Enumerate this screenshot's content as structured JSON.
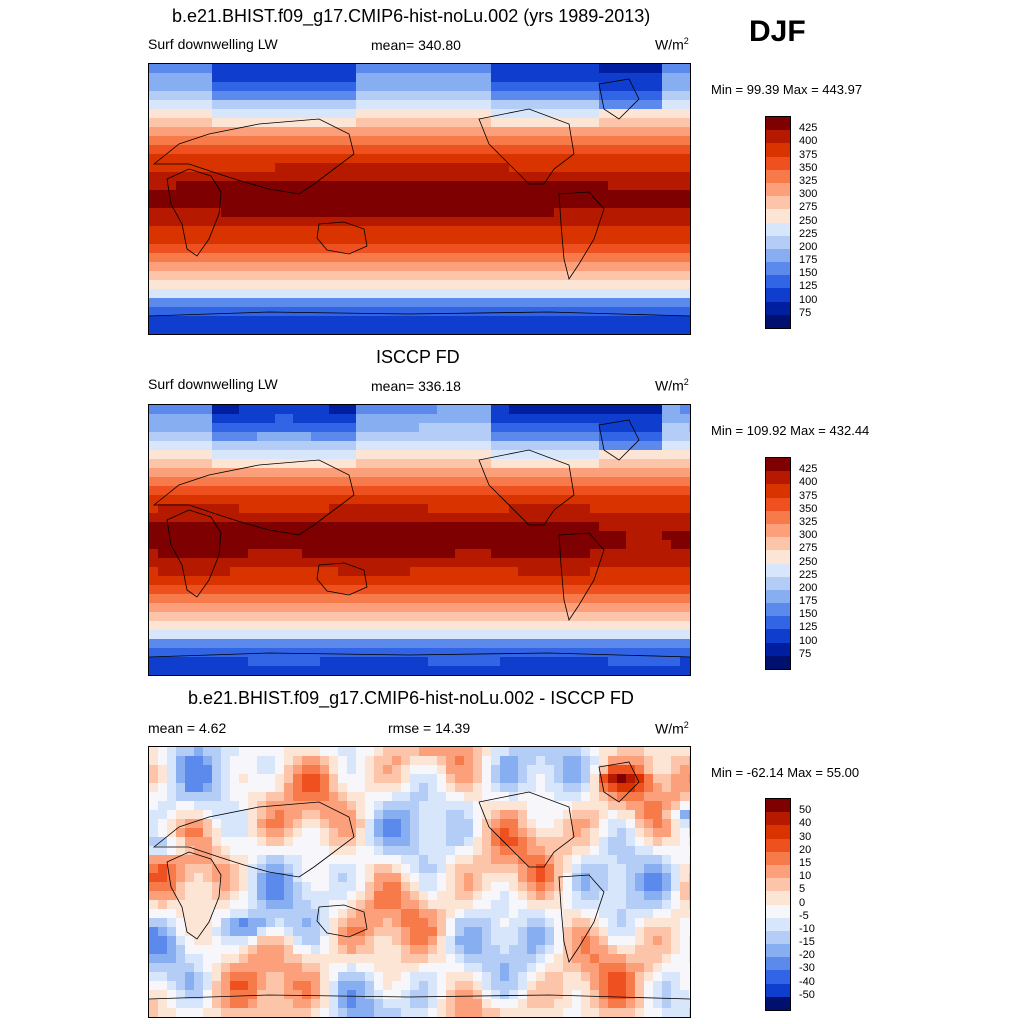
{
  "season": "DJF",
  "panels": [
    {
      "title": "b.e21.BHIST.f09_g17.CMIP6-hist-noLu.002 (yrs 1989-2013)",
      "left": "Surf downwelling LW",
      "mid": "mean= 340.80",
      "units": "W/m",
      "units_sup": "2",
      "minmax": "Min =  99.39 Max = 443.97"
    },
    {
      "title": "ISCCP FD",
      "left": "Surf downwelling LW",
      "mid": "mean= 336.18",
      "units": "W/m",
      "units_sup": "2",
      "minmax": "Min = 109.92 Max = 432.44"
    },
    {
      "title": "b.e21.BHIST.f09_g17.CMIP6-hist-noLu.002 - ISCCP FD",
      "left": "mean =   4.62",
      "mid": "rmse =  14.39",
      "units": "W/m",
      "units_sup": "2",
      "minmax": "Min = -62.14 Max =  55.00"
    }
  ],
  "chart_data": [
    {
      "type": "heatmap",
      "title": "b.e21.BHIST.f09_g17.CMIP6-hist-noLu.002 (yrs 1989-2013)",
      "variable": "Surf downwelling LW",
      "mean": 340.8,
      "min": 99.39,
      "max": 443.97,
      "levels": [
        75,
        100,
        125,
        150,
        175,
        200,
        225,
        250,
        275,
        300,
        325,
        350,
        375,
        400,
        425
      ],
      "colorbar_labels": [
        "425",
        "400",
        "375",
        "350",
        "325",
        "300",
        "275",
        "250",
        "225",
        "200",
        "175",
        "150",
        "125",
        "100",
        "75"
      ]
    },
    {
      "type": "heatmap",
      "title": "ISCCP FD",
      "variable": "Surf downwelling LW",
      "mean": 336.18,
      "min": 109.92,
      "max": 432.44,
      "levels": [
        75,
        100,
        125,
        150,
        175,
        200,
        225,
        250,
        275,
        300,
        325,
        350,
        375,
        400,
        425
      ],
      "colorbar_labels": [
        "425",
        "400",
        "375",
        "350",
        "325",
        "300",
        "275",
        "250",
        "225",
        "200",
        "175",
        "150",
        "125",
        "100",
        "75"
      ]
    },
    {
      "type": "heatmap",
      "title": "b.e21.BHIST.f09_g17.CMIP6-hist-noLu.002 - ISCCP FD",
      "mean": 4.62,
      "rmse": 14.39,
      "min": -62.14,
      "max": 55.0,
      "levels": [
        -50,
        -40,
        -30,
        -20,
        -15,
        -10,
        -5,
        0,
        5,
        10,
        15,
        20,
        30,
        40,
        50
      ],
      "colorbar_labels": [
        "50",
        "40",
        "30",
        "20",
        "15",
        "10",
        "5",
        "0",
        "-5",
        "-10",
        "-15",
        "-20",
        "-30",
        "-40",
        "-50"
      ]
    }
  ],
  "colors": {
    "abs_scale": [
      "#7f0000",
      "#b51a00",
      "#d93400",
      "#ef5020",
      "#f77a4a",
      "#fba07a",
      "#fcc4a8",
      "#fde5d6",
      "#d7e6fb",
      "#b3cdf7",
      "#88aef2",
      "#5c8aec",
      "#3264e6",
      "#0f3ecf",
      "#001fa0",
      "#00106e"
    ],
    "diff_scale": [
      "#7f0000",
      "#b51a00",
      "#d93400",
      "#ef5020",
      "#f77a4a",
      "#fba07a",
      "#fcc4a8",
      "#fde5d6",
      "#f6f6fb",
      "#d7e6fb",
      "#b3cdf7",
      "#88aef2",
      "#5c8aec",
      "#3264e6",
      "#0f3ecf",
      "#00106e"
    ]
  }
}
